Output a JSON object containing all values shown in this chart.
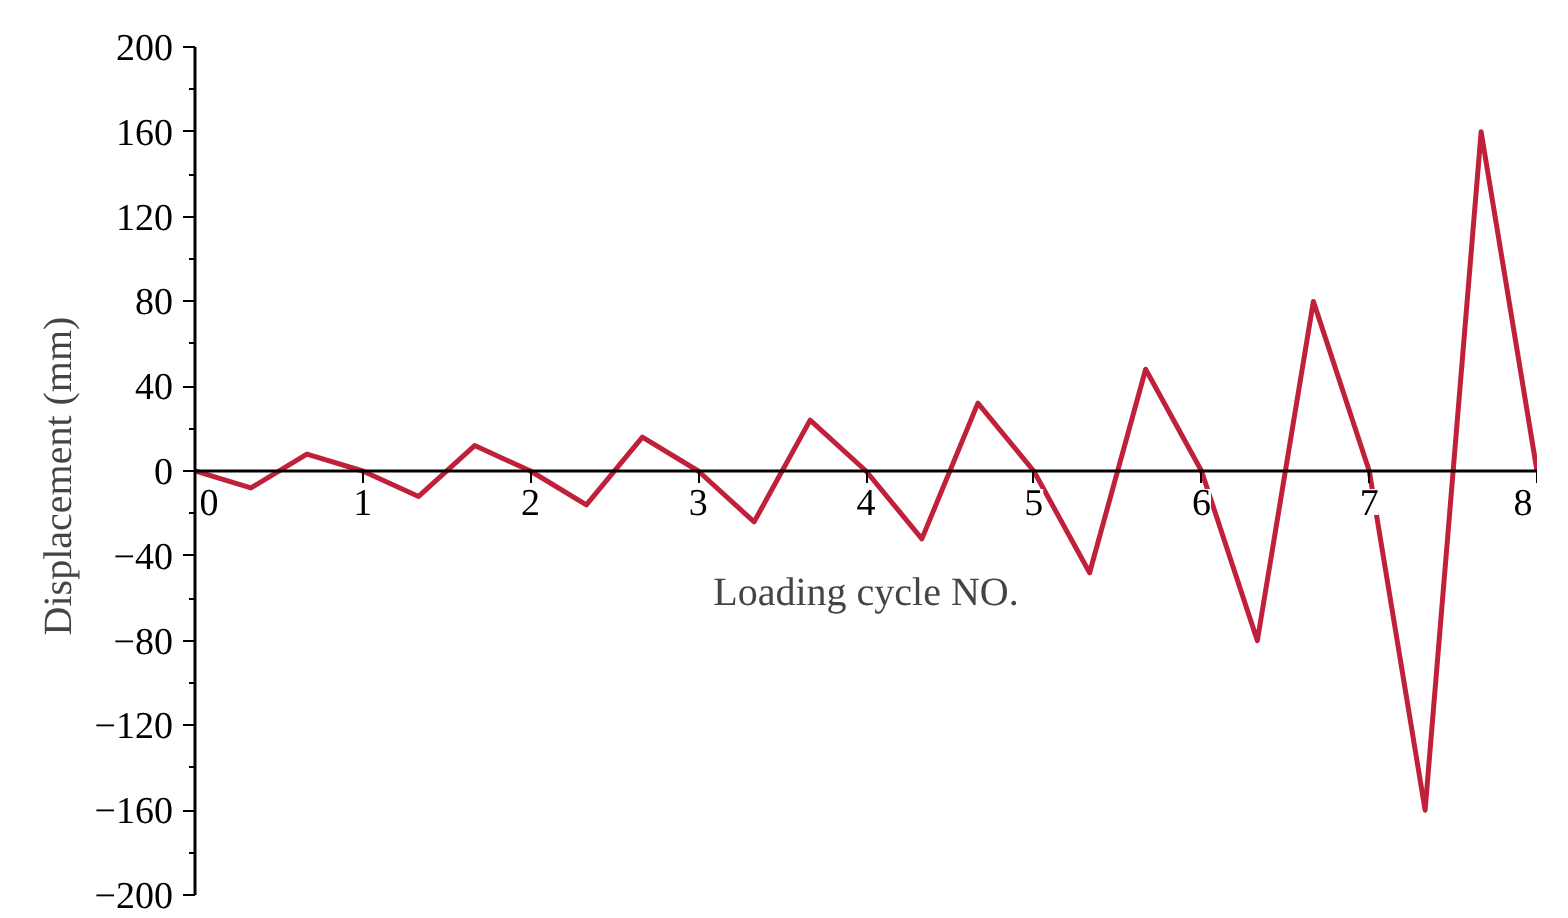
{
  "chart_data": {
    "type": "line",
    "xlabel": "Loading cycle NO.",
    "ylabel": "Displacement  (mm)",
    "x": [
      0,
      0.333,
      0.667,
      1,
      1.333,
      1.667,
      2,
      2.333,
      2.667,
      3,
      3.333,
      3.667,
      4,
      4.333,
      4.667,
      5,
      5.333,
      5.667,
      6,
      6.333,
      6.667,
      7,
      7.333,
      7.667,
      8
    ],
    "series": [
      {
        "color": "#c0203a",
        "values": [
          0,
          -8,
          8,
          0,
          -12,
          12,
          0,
          -16,
          16,
          0,
          -24,
          24,
          0,
          -32,
          32,
          0,
          -48,
          48,
          0,
          -80,
          80,
          0,
          -160,
          160,
          0
        ]
      }
    ],
    "xlim": [
      0,
      8
    ],
    "xticks": [
      0,
      1,
      2,
      3,
      4,
      5,
      6,
      7,
      8
    ],
    "ylim": [
      -200,
      200
    ],
    "yticks": [
      -200,
      -160,
      -120,
      -80,
      -40,
      0,
      40,
      80,
      120,
      160,
      200
    ],
    "grid": false,
    "marker": "none",
    "line_style": "solid"
  }
}
